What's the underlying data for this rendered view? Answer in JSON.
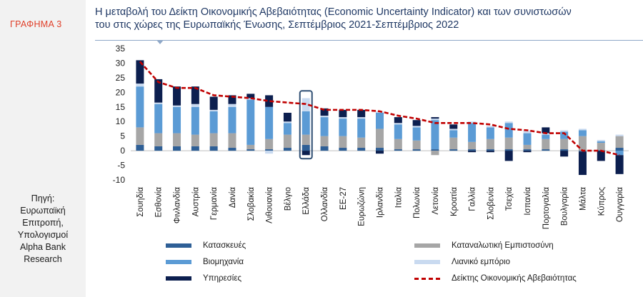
{
  "figure_label": "ΓΡΑΦΗΜΑ 3",
  "title_lines": [
    "Η μεταβολή του Δείκτη Οικονομικής Αβεβαιότητας (Economic Uncertainty Indicator) και των συνιστωσών",
    "του στις χώρες της Ευρωπαϊκής Ένωσης, Σεπτέμβριος 2021-Σεπτέμβριος 2022"
  ],
  "source_lines": [
    "Πηγή:",
    "Ευρωπαϊκή",
    "Επιτροπή,",
    "Υπολογισμοί",
    "Alpha Bank",
    "Research"
  ],
  "colors": {
    "construction": "#2e5f96",
    "industry": "#5b9bd5",
    "services": "#0c1f4f",
    "consumer": "#a6a6a6",
    "retail": "#c9daf0",
    "indicator": "#c00000",
    "highlight": "#2e4e73"
  },
  "legend": {
    "construction": "Κατασκευές",
    "industry": "Βιομηχανία",
    "services": "Υπηρεσίες",
    "consumer": "Καταναλωτική Εμπιστοσύνη",
    "retail": "Λιανικό εμπόριο",
    "indicator": "Δείκτης Οικονομικής Αβεβαιότητας"
  },
  "chart_data": {
    "type": "bar",
    "stacked": true,
    "title": "Η μεταβολή του Δείκτη Οικονομικής Αβεβαιότητας (Economic Uncertainty Indicator) και των συνιστωσών του στις χώρες της Ευρωπαϊκής Ένωσης, Σεπτέμβριος 2021-Σεπτέμβριος 2022",
    "ylim": [
      -10,
      35
    ],
    "yticks": [
      -10,
      -5,
      0,
      5,
      10,
      15,
      20,
      25,
      30,
      35
    ],
    "highlight_category": "Ελλάδα",
    "categories": [
      "Σουηδία",
      "Εσθονία",
      "Φινλανδία",
      "Αυστρία",
      "Γερμανία",
      "Δανία",
      "Σλοβακία",
      "Λιθουανία",
      "Βέλγιο",
      "Ελλάδα",
      "Ολλανδία",
      "ΕΕ-27",
      "Ευρωζώνη",
      "Ιρλανδία",
      "Ιταλία",
      "Πολωνία",
      "Λετονία",
      "Κροατία",
      "Γαλλία",
      "Σλοβενία",
      "Τσεχία",
      "Ισπανία",
      "Πορτογαλία",
      "Βουλγαρία",
      "Μάλτα",
      "Κύπρος",
      "Ουγγαρία"
    ],
    "series": [
      {
        "name": "Κατασκευές",
        "key": "construction",
        "values": [
          2,
          1.5,
          1.5,
          1.5,
          1.5,
          1,
          0.5,
          0.5,
          1,
          2,
          1.5,
          1,
          1,
          1,
          0.5,
          0.5,
          0.5,
          0.5,
          0.5,
          0.5,
          0.5,
          0.5,
          0.5,
          0.5,
          -0.3,
          0.2,
          1
        ]
      },
      {
        "name": "Καταναλωτική Εμπιστοσύνη",
        "key": "consumer",
        "values": [
          6,
          4.5,
          4.5,
          4,
          4.5,
          5,
          1.5,
          3.5,
          4.5,
          3.5,
          3.5,
          4,
          3.5,
          6.5,
          3.5,
          3,
          -1.5,
          4,
          2.5,
          3.5,
          4,
          1.5,
          3.5,
          3.5,
          5,
          2.5,
          4
        ]
      },
      {
        "name": "Βιομηχανία",
        "key": "industry",
        "values": [
          14,
          10,
          9,
          9.5,
          7.5,
          9,
          15.5,
          11,
          4,
          8,
          6.5,
          6,
          6.5,
          5.5,
          5,
          4.5,
          10,
          2.5,
          6.5,
          4,
          5,
          4,
          1.5,
          2.5,
          2,
          0.5,
          -1.5
        ]
      },
      {
        "name": "Λιανικό εμπόριο",
        "key": "retail",
        "values": [
          1,
          0.5,
          0.5,
          1,
          0.5,
          1,
          0.5,
          -1,
          0.5,
          4.5,
          0.5,
          0.5,
          0.5,
          0.5,
          0.5,
          0.5,
          0.5,
          0.5,
          0.5,
          0.5,
          0.5,
          1,
          0.5,
          0.5,
          0.5,
          0.5,
          0.5
        ]
      },
      {
        "name": "Υπηρεσίες",
        "key": "services",
        "values": [
          8,
          8,
          6.5,
          6,
          4.5,
          3,
          1.5,
          4,
          3,
          -1.5,
          2.5,
          2.5,
          2.5,
          -1,
          2,
          2,
          0.5,
          1.5,
          -0.5,
          -0.5,
          -3.5,
          -0.5,
          2,
          -2,
          -8,
          -3.5,
          -6.5
        ]
      }
    ],
    "indicator": {
      "name": "Δείκτης Οικονομικής Αβεβαιότητας",
      "values": [
        30.5,
        23.5,
        21.5,
        21.5,
        19,
        18.5,
        18,
        17,
        16.5,
        16,
        14,
        14,
        14,
        13.5,
        12,
        11,
        9.5,
        9.5,
        9.5,
        9,
        7.5,
        7,
        6,
        6,
        0,
        0,
        -1.5
      ]
    }
  }
}
